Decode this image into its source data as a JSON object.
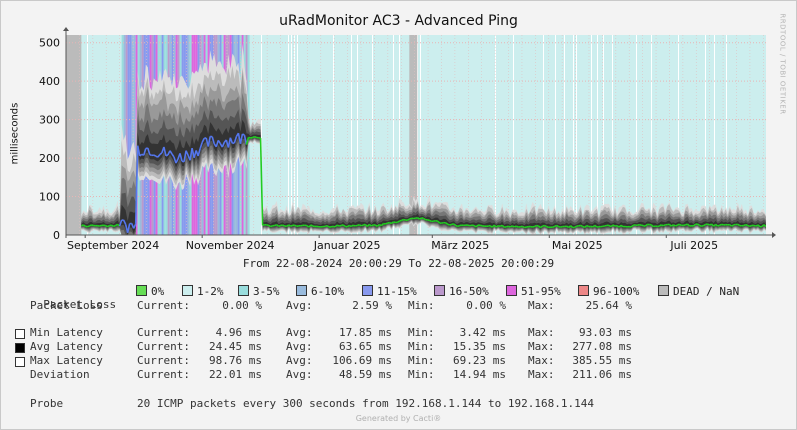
{
  "title": "uRadMonitor AC3 - Advanced Ping",
  "side_credit": "RRDTOOL / TOBI OETIKER",
  "range_text": "From 22-08-2024 20:00:29 To 22-08-2025 20:00:29",
  "legend": {
    "label": "Packet Loss",
    "items": [
      {
        "label": "0%",
        "color": "#66dd55"
      },
      {
        "label": "1-2%",
        "color": "#cceeee"
      },
      {
        "label": "3-5%",
        "color": "#99dddd"
      },
      {
        "label": "6-10%",
        "color": "#99bbdd"
      },
      {
        "label": "11-15%",
        "color": "#8899ee"
      },
      {
        "label": "16-50%",
        "color": "#bb99cc"
      },
      {
        "label": "51-95%",
        "color": "#dd66dd"
      },
      {
        "label": "96-100%",
        "color": "#ee8888"
      },
      {
        "label": "DEAD / NaN",
        "color": "#bbbbbb"
      }
    ]
  },
  "stats": {
    "packet_loss": {
      "label": "Packet Loss",
      "current": "Current:",
      "cur": "0.00 %",
      "avg_l": "Avg:",
      "avg": "2.59 %",
      "min_l": "Min:",
      "min": "0.00 %",
      "max_l": "Max:",
      "max": "25.64 %"
    },
    "min_latency": {
      "label": "Min Latency",
      "current": "Current:",
      "cur": "4.96 ms",
      "avg_l": "Avg:",
      "avg": "17.85 ms",
      "min_l": "Min:",
      "min": "3.42 ms",
      "max_l": "Max:",
      "max": "93.03 ms"
    },
    "avg_latency": {
      "label": "Avg Latency",
      "current": "Current:",
      "cur": "24.45 ms",
      "avg_l": "Avg:",
      "avg": "63.65 ms",
      "min_l": "Min:",
      "min": "15.35 ms",
      "max_l": "Max:",
      "max": "277.08 ms"
    },
    "max_latency": {
      "label": "Max Latency",
      "current": "Current:",
      "cur": "98.76 ms",
      "avg_l": "Avg:",
      "avg": "106.69 ms",
      "min_l": "Min:",
      "min": "69.23 ms",
      "max_l": "Max:",
      "max": "385.55 ms"
    },
    "deviation": {
      "label": "Deviation",
      "current": "Current:",
      "cur": "22.01 ms",
      "avg_l": "Avg:",
      "avg": "48.59 ms",
      "min_l": "Min:",
      "min": "14.94 ms",
      "max_l": "Max:",
      "max": "211.06 ms"
    }
  },
  "probe": {
    "label": "Probe",
    "text": "20 ICMP packets every 300 seconds from 192.168.1.144 to 192.168.1.144"
  },
  "footer": "Generated by Cacti®",
  "chart_data": {
    "type": "area",
    "title": "uRadMonitor AC3 - Advanced Ping",
    "ylabel": "milliseconds",
    "ylim": [
      0,
      520
    ],
    "yticks": [
      0,
      100,
      200,
      300,
      400,
      500
    ],
    "x_start": "2024-08-22",
    "x_end": "2025-08-22",
    "xticks": [
      "September 2024",
      "November 2024",
      "Januar 2025",
      "März 2025",
      "Mai 2025",
      "Juli 2025"
    ],
    "grid": true,
    "dead_periods": [
      [
        "2024-08-22",
        "2024-08-30"
      ],
      [
        "2025-02-17",
        "2025-02-20"
      ]
    ],
    "high_latency_period": [
      "2024-09-20",
      "2024-11-25"
    ],
    "series": [
      {
        "name": "Avg Latency",
        "color": "#22cc22",
        "x": [
          "2024-08-30",
          "2024-09-20",
          "2024-10-05",
          "2024-10-20",
          "2024-11-05",
          "2024-11-25",
          "2024-12-10",
          "2025-01-01",
          "2025-02-01",
          "2025-02-20",
          "2025-03-15",
          "2025-04-15",
          "2025-05-15",
          "2025-06-15",
          "2025-07-15",
          "2025-08-22"
        ],
        "y": [
          24,
          25,
          225,
          200,
          240,
          255,
          24,
          23,
          25,
          45,
          24,
          22,
          22,
          24,
          26,
          24
        ]
      }
    ]
  }
}
